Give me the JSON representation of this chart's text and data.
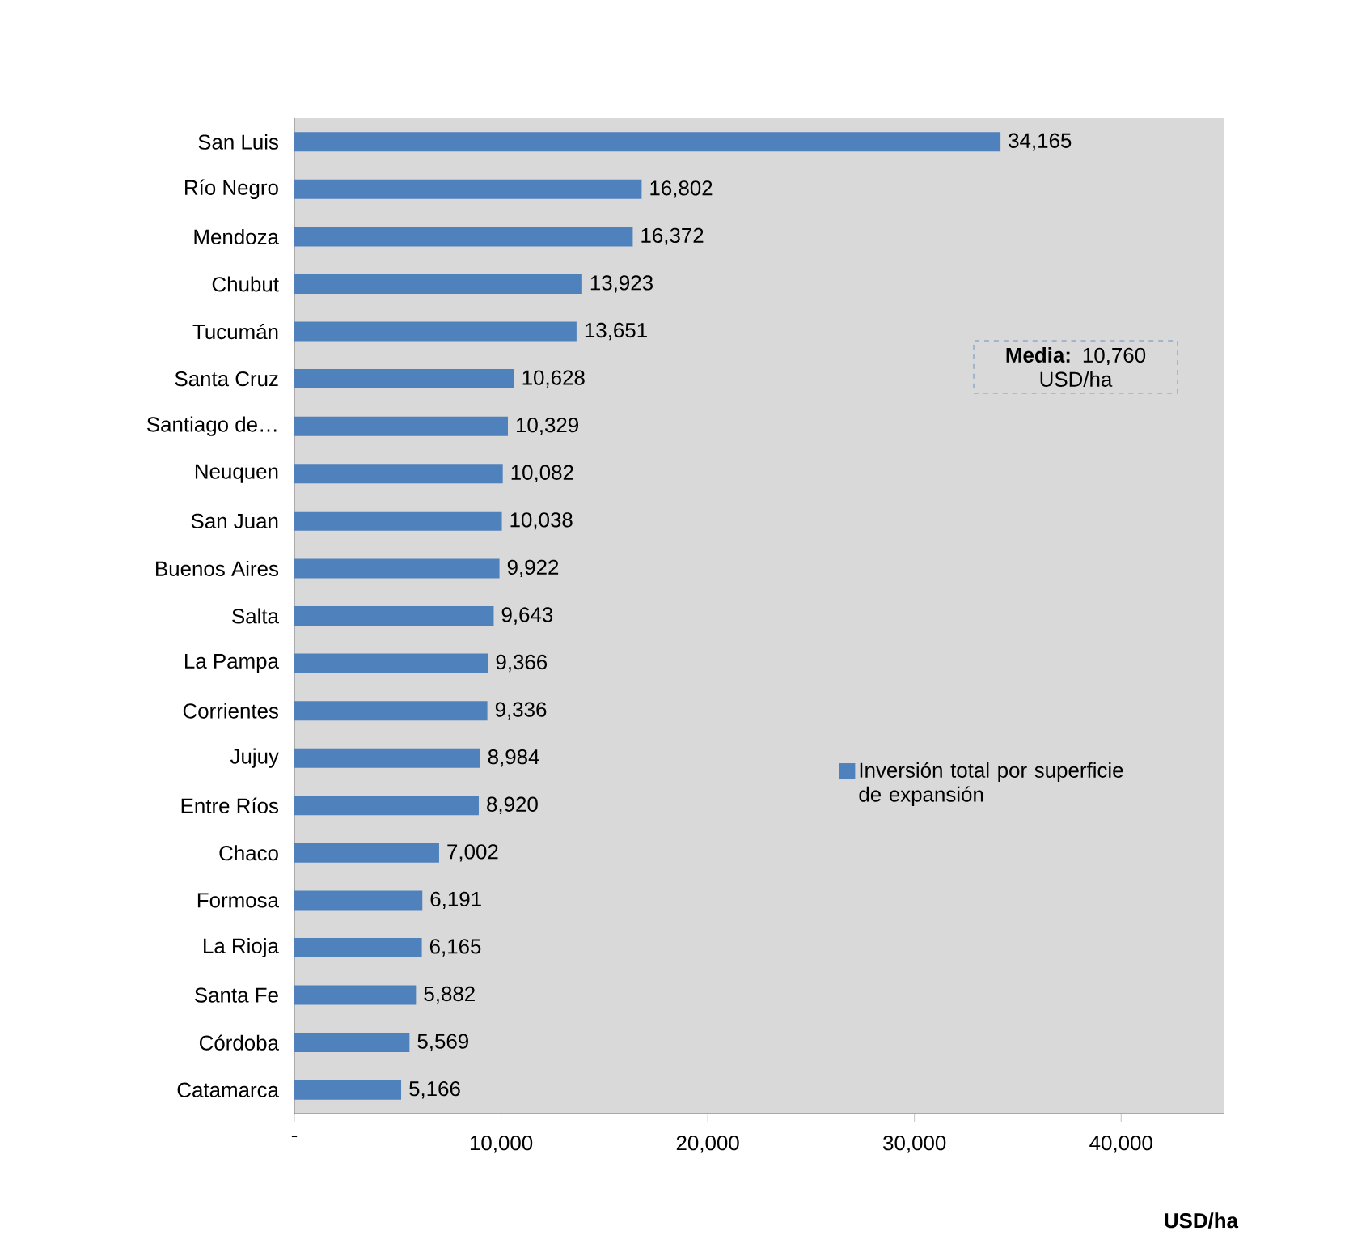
{
  "chart_data": {
    "type": "bar",
    "orientation": "horizontal",
    "xlabel": "USD/ha",
    "categories": [
      "San Luis",
      "Río Negro",
      "Mendoza",
      "Chubut",
      "Tucumán",
      "Santa Cruz",
      "Santiago de…",
      "Neuquen",
      "San Juan",
      "Buenos Aires",
      "Salta",
      "La Pampa",
      "Corrientes",
      "Jujuy",
      "Entre Ríos",
      "Chaco",
      "Formosa",
      "La Rioja",
      "Santa Fe",
      "Córdoba",
      "Catamarca"
    ],
    "series": [
      {
        "name": "Inversión total por superficie de expansión",
        "color": "#4f81bd",
        "values": [
          34165,
          16802,
          16372,
          13923,
          13651,
          10628,
          10329,
          10082,
          10038,
          9922,
          9643,
          9366,
          9336,
          8984,
          8920,
          7002,
          6191,
          6165,
          5882,
          5569,
          5166
        ],
        "value_labels": [
          "34,165",
          "16,802",
          "16,372",
          "13,923",
          "13,651",
          "10,628",
          "10,329",
          "10,082",
          "10,038",
          "9,922",
          "9,643",
          "9,366",
          "9,336",
          "8,984",
          "8,920",
          "7,002",
          "6,191",
          "6,165",
          "5,882",
          "5,569",
          "5,166"
        ]
      }
    ],
    "xlim": [
      0,
      45000
    ],
    "xticks": [
      {
        "value": 0,
        "label": "-"
      },
      {
        "value": 10000,
        "label": "10,000"
      },
      {
        "value": 20000,
        "label": "20,000"
      },
      {
        "value": 30000,
        "label": "30,000"
      },
      {
        "value": 40000,
        "label": "40,000"
      }
    ],
    "annotations": [
      "**Media:** 10,760 USD/ha"
    ],
    "legend": "right",
    "grid": false
  }
}
